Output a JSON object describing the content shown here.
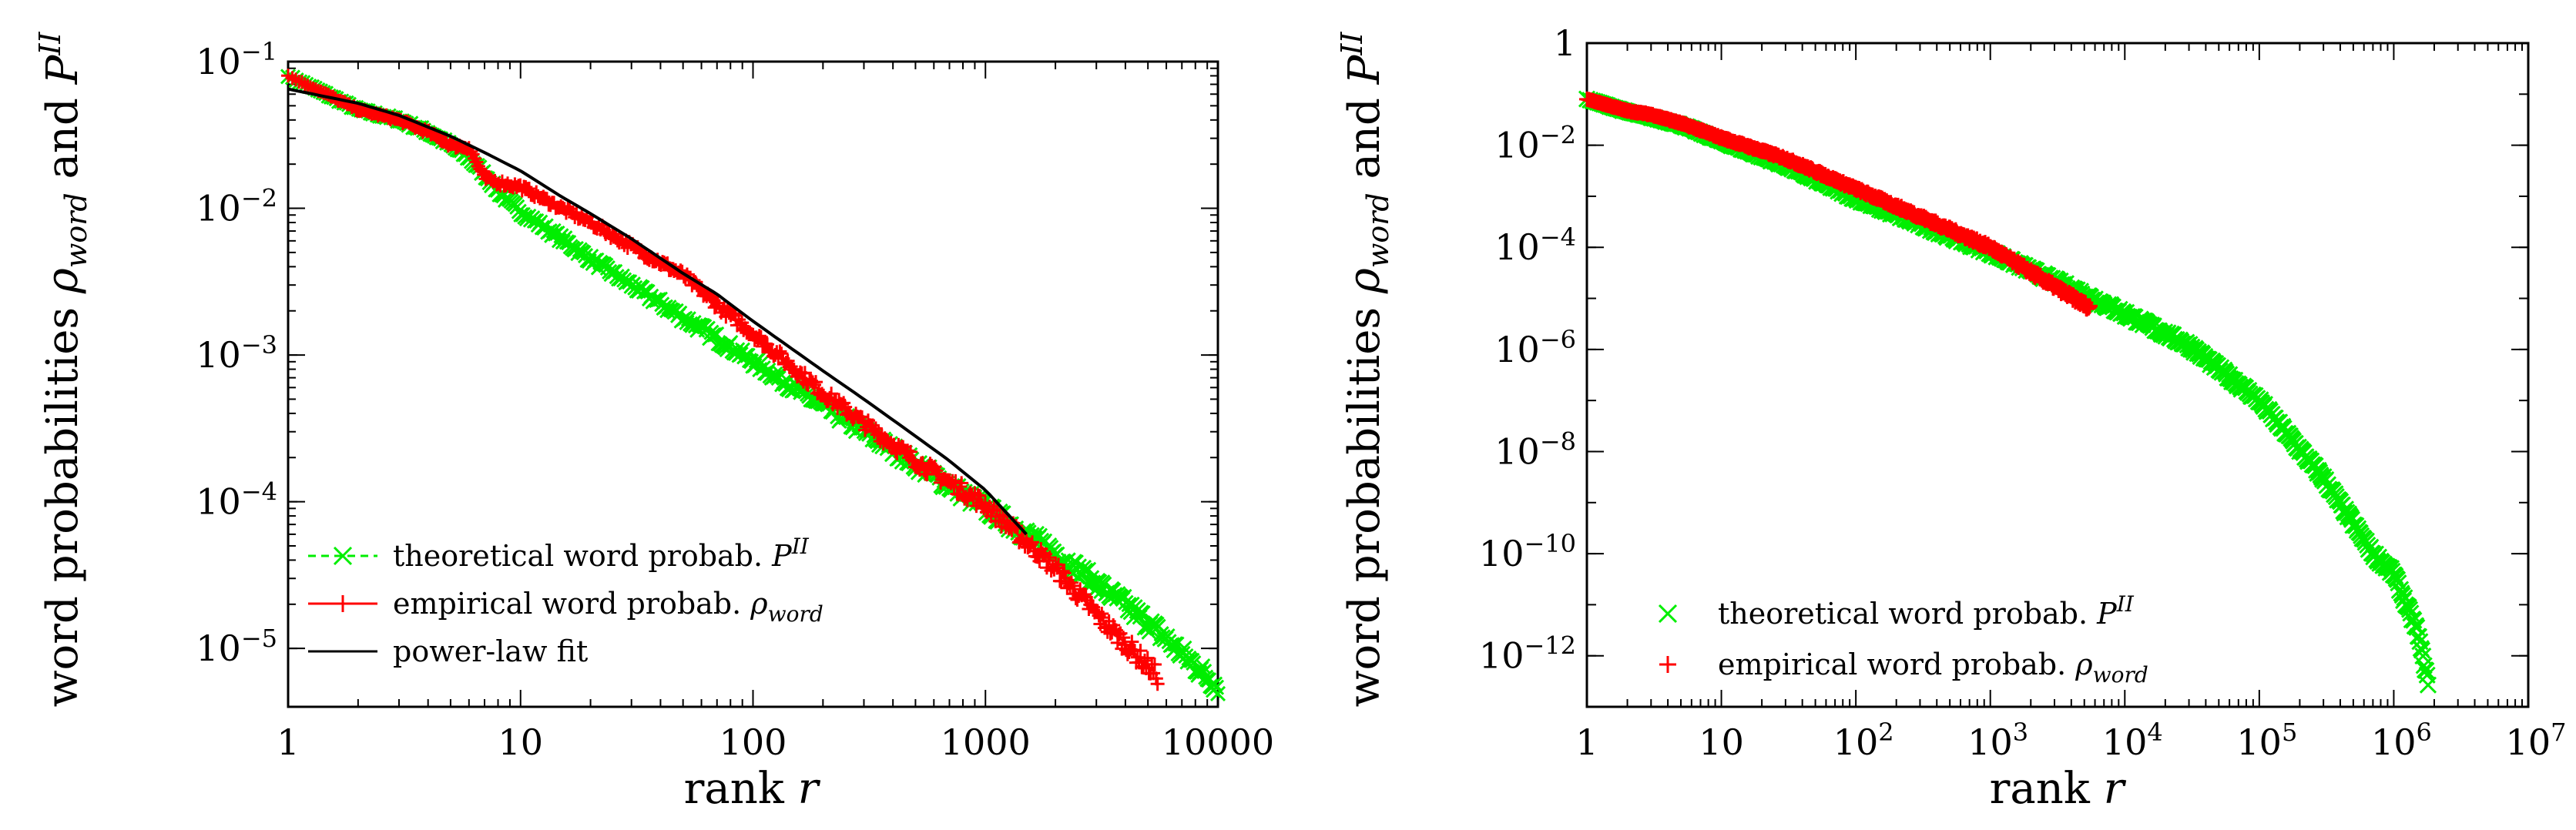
{
  "chart_data": [
    {
      "type": "line",
      "xscale": "log",
      "yscale": "log",
      "xlim": [
        1,
        10000
      ],
      "ylim": [
        4e-06,
        0.1
      ],
      "xlabel": "rank r",
      "ylabel": "word probabilities ρword and P^II",
      "x_ticks": [
        {
          "value": 1,
          "label": "1"
        },
        {
          "value": 10,
          "label": "10"
        },
        {
          "value": 100,
          "label": "100"
        },
        {
          "value": 1000,
          "label": "1000"
        },
        {
          "value": 10000,
          "label": "10000"
        }
      ],
      "y_ticks": [
        {
          "value": 1e-05,
          "base": "10",
          "exp": "−5"
        },
        {
          "value": 0.0001,
          "base": "10",
          "exp": "−4"
        },
        {
          "value": 0.001,
          "base": "10",
          "exp": "−3"
        },
        {
          "value": 0.01,
          "base": "10",
          "exp": "−2"
        },
        {
          "value": 0.1,
          "base": "10",
          "exp": "−1"
        }
      ],
      "legend_position": "bottom-left",
      "series": [
        {
          "name": "theoretical word probab. P^II",
          "legend_text": "theoretical word probab.",
          "legend_math": "P",
          "legend_sup": "II",
          "color": "#00ee00",
          "marker": "x",
          "line": "dashed",
          "x": [
            1,
            2,
            3,
            4,
            5,
            6,
            7,
            8,
            10,
            15,
            20,
            30,
            50,
            70,
            100,
            200,
            500,
            1000,
            2000,
            5000,
            10000
          ],
          "y": [
            0.08,
            0.047,
            0.04,
            0.033,
            0.027,
            0.022,
            0.017,
            0.013,
            0.0095,
            0.0062,
            0.0045,
            0.003,
            0.0018,
            0.0013,
            0.0009,
            0.00045,
            0.00018,
            9e-05,
            4.5e-05,
            1.5e-05,
            5.5e-06
          ]
        },
        {
          "name": "empirical word probab. ρword",
          "legend_text": "empirical word probab.",
          "legend_math": "ρ",
          "legend_sub": "word",
          "color": "#ff0000",
          "marker": "+",
          "line": "solid",
          "x": [
            1,
            2,
            3,
            4,
            5,
            6,
            7,
            8,
            10,
            15,
            20,
            30,
            50,
            70,
            100,
            200,
            500,
            1000,
            2000,
            3000,
            5500
          ],
          "y": [
            0.08,
            0.047,
            0.04,
            0.033,
            0.027,
            0.026,
            0.016,
            0.015,
            0.014,
            0.01,
            0.008,
            0.0055,
            0.0035,
            0.0022,
            0.0014,
            0.00055,
            0.00019,
            9.5e-05,
            3.5e-05,
            1.7e-05,
            6.5e-06
          ]
        },
        {
          "name": "power-law fit",
          "legend_text": "power-law fit",
          "color": "#000000",
          "marker": "none",
          "line": "solid",
          "x": [
            1,
            2,
            3,
            5,
            7,
            10,
            15,
            20,
            30,
            50,
            70,
            100,
            200,
            300,
            500,
            700,
            1000,
            1500
          ],
          "y": [
            0.065,
            0.052,
            0.043,
            0.031,
            0.024,
            0.018,
            0.012,
            0.0092,
            0.0062,
            0.0036,
            0.0026,
            0.0017,
            0.00078,
            0.0005,
            0.00028,
            0.00019,
            0.00012,
            6e-05
          ]
        }
      ]
    },
    {
      "type": "scatter",
      "xscale": "log",
      "yscale": "log",
      "xlim": [
        1,
        10000000
      ],
      "ylim": [
        1e-13,
        1
      ],
      "xlabel": "rank r",
      "ylabel": "word probabilities ρword and P^II",
      "x_ticks": [
        {
          "value": 1,
          "base": "1",
          "exp": ""
        },
        {
          "value": 10,
          "base": "10",
          "exp": ""
        },
        {
          "value": 100,
          "base": "10",
          "exp": "2"
        },
        {
          "value": 1000,
          "base": "10",
          "exp": "3"
        },
        {
          "value": 10000,
          "base": "10",
          "exp": "4"
        },
        {
          "value": 100000,
          "base": "10",
          "exp": "5"
        },
        {
          "value": 1000000,
          "base": "10",
          "exp": "6"
        },
        {
          "value": 10000000,
          "base": "10",
          "exp": "7"
        }
      ],
      "y_ticks": [
        {
          "value": 1,
          "base": "1",
          "exp": ""
        },
        {
          "value": 0.01,
          "base": "10",
          "exp": "−2"
        },
        {
          "value": 0.0001,
          "base": "10",
          "exp": "−4"
        },
        {
          "value": 1e-06,
          "base": "10",
          "exp": "−6"
        },
        {
          "value": 1e-08,
          "base": "10",
          "exp": "−8"
        },
        {
          "value": 1e-10,
          "base": "10",
          "exp": "−10"
        },
        {
          "value": 1e-12,
          "base": "10",
          "exp": "−12"
        }
      ],
      "legend_position": "bottom-left",
      "series": [
        {
          "name": "theoretical word probab. P^II",
          "legend_text": "theoretical word probab.",
          "legend_math": "P",
          "legend_sup": "II",
          "color": "#00ee00",
          "marker": "x",
          "x": [
            1,
            2,
            3,
            5,
            10,
            30,
            100,
            300,
            1000,
            3000,
            10000,
            30000,
            100000,
            300000,
            700000,
            1000000,
            1500000,
            1800000
          ],
          "y": [
            0.08,
            0.045,
            0.035,
            0.025,
            0.012,
            0.004,
            0.0009,
            0.00028,
            8e-05,
            2.2e-05,
            5e-06,
            1.2e-06,
            1e-07,
            3e-09,
            1e-10,
            4e-11,
            3e-12,
            3e-13
          ]
        },
        {
          "name": "empirical word probab. ρword",
          "legend_text": "empirical word probab.",
          "legend_math": "ρ",
          "legend_sub": "word",
          "color": "#ff0000",
          "marker": "+",
          "x": [
            1,
            2,
            3,
            5,
            10,
            30,
            100,
            300,
            1000,
            3000,
            5500
          ],
          "y": [
            0.08,
            0.047,
            0.04,
            0.027,
            0.014,
            0.0055,
            0.0014,
            0.0004,
            0.0001,
            1.7e-05,
            6.5e-06
          ]
        }
      ]
    }
  ]
}
